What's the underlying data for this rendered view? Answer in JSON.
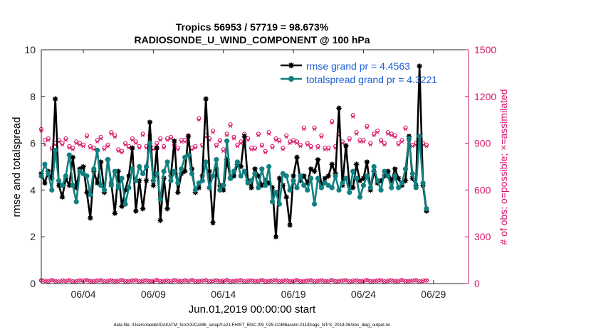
{
  "chart_data": {
    "type": "line",
    "title": "Tropics 56953 / 57719 = 98.673%",
    "subtitle": "RADIOSONDE_U_WIND_COMPONENT @ 100 hPa",
    "xlabel": "Jun.01,2019 00:00:00 start",
    "ylabel": "rmse and totalspread",
    "y2label": "# of obs: o=possible; ×=assimilated",
    "footer": "data file: /Users/raeder/DAI/ATM_forcXX/CAM6_setup/f.e21.FHIST_BGC.f09_025.CAM6assim.011/Diags_NTrS_2019-06/obs_diag_output.nc",
    "xlim": [
      1,
      31.5
    ],
    "ylim": [
      0,
      10
    ],
    "y2lim": [
      0,
      1500
    ],
    "x_ticks": [
      {
        "v": 4,
        "label": "06/04"
      },
      {
        "v": 9,
        "label": "06/09"
      },
      {
        "v": 14,
        "label": "06/14"
      },
      {
        "v": 19,
        "label": "06/19"
      },
      {
        "v": 24,
        "label": "06/24"
      },
      {
        "v": 29,
        "label": "06/29"
      }
    ],
    "y_ticks": [
      {
        "v": 0,
        "label": "0"
      },
      {
        "v": 2,
        "label": "2"
      },
      {
        "v": 4,
        "label": "4"
      },
      {
        "v": 6,
        "label": "6"
      },
      {
        "v": 8,
        "label": "8"
      },
      {
        "v": 10,
        "label": "10"
      }
    ],
    "y2_ticks": [
      {
        "v": 0,
        "label": "0"
      },
      {
        "v": 300,
        "label": "300"
      },
      {
        "v": 600,
        "label": "600"
      },
      {
        "v": 900,
        "label": "900"
      },
      {
        "v": 1200,
        "label": "1200"
      },
      {
        "v": 1500,
        "label": "1500"
      }
    ],
    "legend_position": "top-right",
    "colors": {
      "rmse": "#000000",
      "spread": "#118080",
      "obs": "#d6186a",
      "y2axis": "#d6186a"
    },
    "x_start": 1.0,
    "x_step": 0.25,
    "series": [
      {
        "name": "rmse grand pr = 4.4563",
        "values": [
          4.7,
          4.3,
          4.8,
          4.5,
          7.9,
          4.2,
          3.7,
          4.5,
          4.2,
          5.4,
          4.1,
          4.9,
          5.0,
          3.9,
          2.8,
          4.8,
          4.3,
          5.2,
          3.9,
          5.3,
          4.3,
          3.0,
          4.8,
          3.3,
          4.0,
          4.6,
          5.8,
          3.1,
          4.4,
          3.2,
          4.4,
          6.9,
          4.2,
          5.8,
          2.7,
          4.5,
          3.2,
          4.6,
          6.1,
          3.9,
          4.7,
          4.8,
          6.3,
          4.9,
          3.9,
          4.1,
          4.6,
          7.9,
          4.8,
          2.6,
          4.9,
          4.2,
          4.0,
          5.3,
          4.5,
          4.6,
          5.1,
          5.0,
          6.3,
          4.4,
          4.1,
          4.9,
          4.6,
          4.2,
          4.4,
          4.3,
          4.1,
          2.0,
          4.5,
          4.2,
          3.7,
          2.5,
          4.6,
          5.4,
          4.4,
          4.6,
          4.3,
          4.9,
          4.8,
          5.3,
          4.2,
          4.5,
          4.6,
          5.1,
          4.7,
          7.5,
          4.2,
          5.9,
          4.2,
          4.1,
          5.1,
          4.4,
          4.5,
          5.2,
          4.0,
          4.8,
          4.3,
          4.4,
          4.6,
          4.8,
          4.4,
          4.9,
          4.5,
          4.2,
          4.4,
          6.3,
          4.5,
          4.2,
          9.3,
          4.2,
          3.1
        ]
      },
      {
        "name": "totalspread grand pr = 4.3221",
        "values": [
          4.6,
          5.1,
          4.7,
          4.0,
          5.7,
          4.4,
          4.2,
          4.6,
          5.5,
          4.2,
          3.5,
          4.8,
          4.7,
          4.6,
          3.8,
          4.9,
          5.7,
          4.2,
          4.0,
          5.3,
          4.2,
          4.8,
          4.1,
          4.5,
          3.4,
          4.1,
          4.9,
          4.4,
          5.0,
          4.7,
          5.0,
          6.0,
          4.4,
          4.7,
          3.6,
          4.8,
          5.2,
          4.4,
          4.8,
          4.3,
          4.9,
          5.4,
          5.5,
          4.7,
          4.0,
          4.3,
          4.4,
          5.2,
          4.1,
          4.6,
          5.3,
          4.0,
          4.2,
          6.1,
          4.5,
          4.8,
          5.2,
          4.6,
          4.8,
          4.3,
          4.4,
          4.7,
          4.1,
          4.9,
          4.2,
          5.0,
          3.5,
          3.9,
          3.4,
          4.7,
          4.6,
          4.0,
          4.4,
          4.1,
          4.6,
          4.2,
          4.0,
          4.5,
          3.4,
          4.5,
          4.1,
          4.3,
          4.2,
          4.1,
          4.6,
          4.0,
          4.3,
          4.5,
          3.9,
          4.8,
          4.5,
          3.7,
          4.2,
          4.6,
          4.1,
          5.0,
          4.4,
          4.0,
          4.8,
          4.6,
          4.1,
          4.6,
          4.1,
          4.3,
          4.9,
          6.2,
          4.7,
          4.1,
          6.3,
          4.3,
          3.2
        ]
      }
    ],
    "obs_series": [
      {
        "name": "possible (o)",
        "values": [
          990,
          920,
          930,
          870,
          900,
          920,
          900,
          930,
          880,
          870,
          910,
          900,
          890,
          950,
          880,
          870,
          920,
          940,
          870,
          890,
          970,
          950,
          860,
          850,
          900,
          880,
          930,
          910,
          880,
          960,
          880,
          950,
          870,
          900,
          930,
          880,
          930,
          940,
          890,
          870,
          920,
          920,
          950,
          870,
          880,
          1060,
          890,
          950,
          930,
          980,
          890,
          920,
          860,
          960,
          1020,
          940,
          890,
          910,
          960,
          930,
          870,
          870,
          960,
          890,
          850,
          970,
          880,
          930,
          920,
          870,
          950,
          910,
          920,
          910,
          890,
          1000,
          900,
          880,
          1000,
          880,
          950,
          870,
          870,
          1040,
          880,
          960,
          910,
          880,
          930,
          1080,
          970,
          920,
          920,
          1010,
          900,
          960,
          980,
          920,
          900,
          970,
          960,
          950,
          900,
          920,
          1000,
          920,
          890,
          900,
          920,
          900,
          890
        ]
      },
      {
        "name": "assimilated (×)",
        "values": [
          980,
          890,
          920,
          860,
          890,
          910,
          890,
          920,
          870,
          860,
          900,
          890,
          880,
          940,
          870,
          860,
          910,
          930,
          860,
          880,
          960,
          940,
          850,
          840,
          890,
          870,
          920,
          900,
          870,
          950,
          870,
          940,
          860,
          890,
          920,
          870,
          920,
          930,
          880,
          860,
          910,
          910,
          940,
          860,
          870,
          1050,
          880,
          940,
          920,
          970,
          880,
          910,
          850,
          950,
          1010,
          930,
          880,
          900,
          950,
          920,
          860,
          860,
          950,
          880,
          840,
          960,
          870,
          920,
          910,
          860,
          940,
          900,
          910,
          900,
          880,
          990,
          890,
          870,
          990,
          870,
          940,
          860,
          860,
          1030,
          870,
          950,
          900,
          870,
          920,
          1070,
          960,
          910,
          910,
          1000,
          890,
          950,
          970,
          910,
          890,
          960,
          950,
          940,
          890,
          910,
          990,
          910,
          880,
          890,
          910,
          890,
          880
        ]
      },
      {
        "name": "possible (o) low",
        "values": [
          20,
          18,
          14,
          22,
          16,
          12,
          19,
          17,
          21,
          13,
          15,
          20,
          18,
          22,
          16,
          14,
          19,
          21,
          13,
          17,
          20,
          15,
          18,
          22,
          14,
          16,
          19,
          21,
          13,
          18,
          20,
          15,
          17,
          22,
          14,
          16,
          19,
          13,
          21,
          18,
          15,
          20,
          17,
          22,
          14,
          16,
          19,
          21,
          13,
          18,
          20,
          15,
          17,
          22,
          14,
          16,
          19,
          21,
          13,
          18,
          20,
          15,
          17,
          22,
          14,
          16,
          19,
          21,
          13,
          18,
          20,
          15,
          17,
          22,
          14,
          16,
          19,
          21,
          13,
          18,
          20,
          15,
          17,
          22,
          14,
          16,
          19,
          21,
          13,
          18,
          20,
          15,
          17,
          22,
          14,
          16,
          19,
          21,
          13,
          18,
          20,
          15,
          17,
          22,
          14,
          16,
          19,
          21,
          13,
          18,
          20
        ]
      }
    ]
  }
}
